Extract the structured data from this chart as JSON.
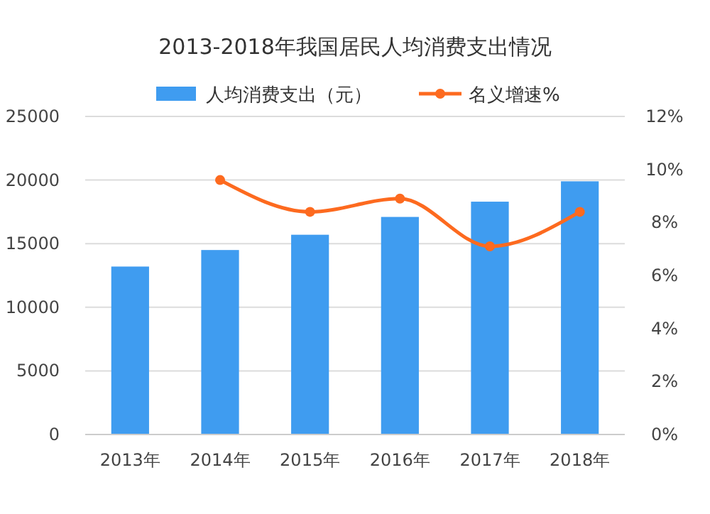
{
  "chart_data": {
    "type": "bar",
    "title": "2013-2018年我国居民人均消费支出情况",
    "categories": [
      "2013年",
      "2014年",
      "2015年",
      "2016年",
      "2017年",
      "2018年"
    ],
    "series": [
      {
        "name": "人均消费支出（元）",
        "color": "#3f9cf0",
        "values": [
          13200,
          14500,
          15700,
          17100,
          18300,
          19900
        ]
      },
      {
        "name": "名义增速%",
        "type": "line",
        "axis": "y2",
        "color": "#fd6a1f",
        "values": [
          null,
          9.6,
          8.4,
          8.9,
          7.1,
          8.4
        ]
      }
    ],
    "ylim": [
      0,
      25000
    ],
    "yticks": [
      0,
      5000,
      10000,
      15000,
      20000,
      25000
    ],
    "y2lim": [
      0,
      12
    ],
    "y2ticks": [
      {
        "value": 0,
        "label": "0%"
      },
      {
        "value": 2,
        "label": "2%"
      },
      {
        "value": 4,
        "label": "4%"
      },
      {
        "value": 6,
        "label": "6%"
      },
      {
        "value": 8,
        "label": "8%"
      },
      {
        "value": 10,
        "label": "10%"
      },
      {
        "value": 12,
        "label": "12%"
      }
    ],
    "grid": "y",
    "legend": "top",
    "marker": "circle"
  }
}
